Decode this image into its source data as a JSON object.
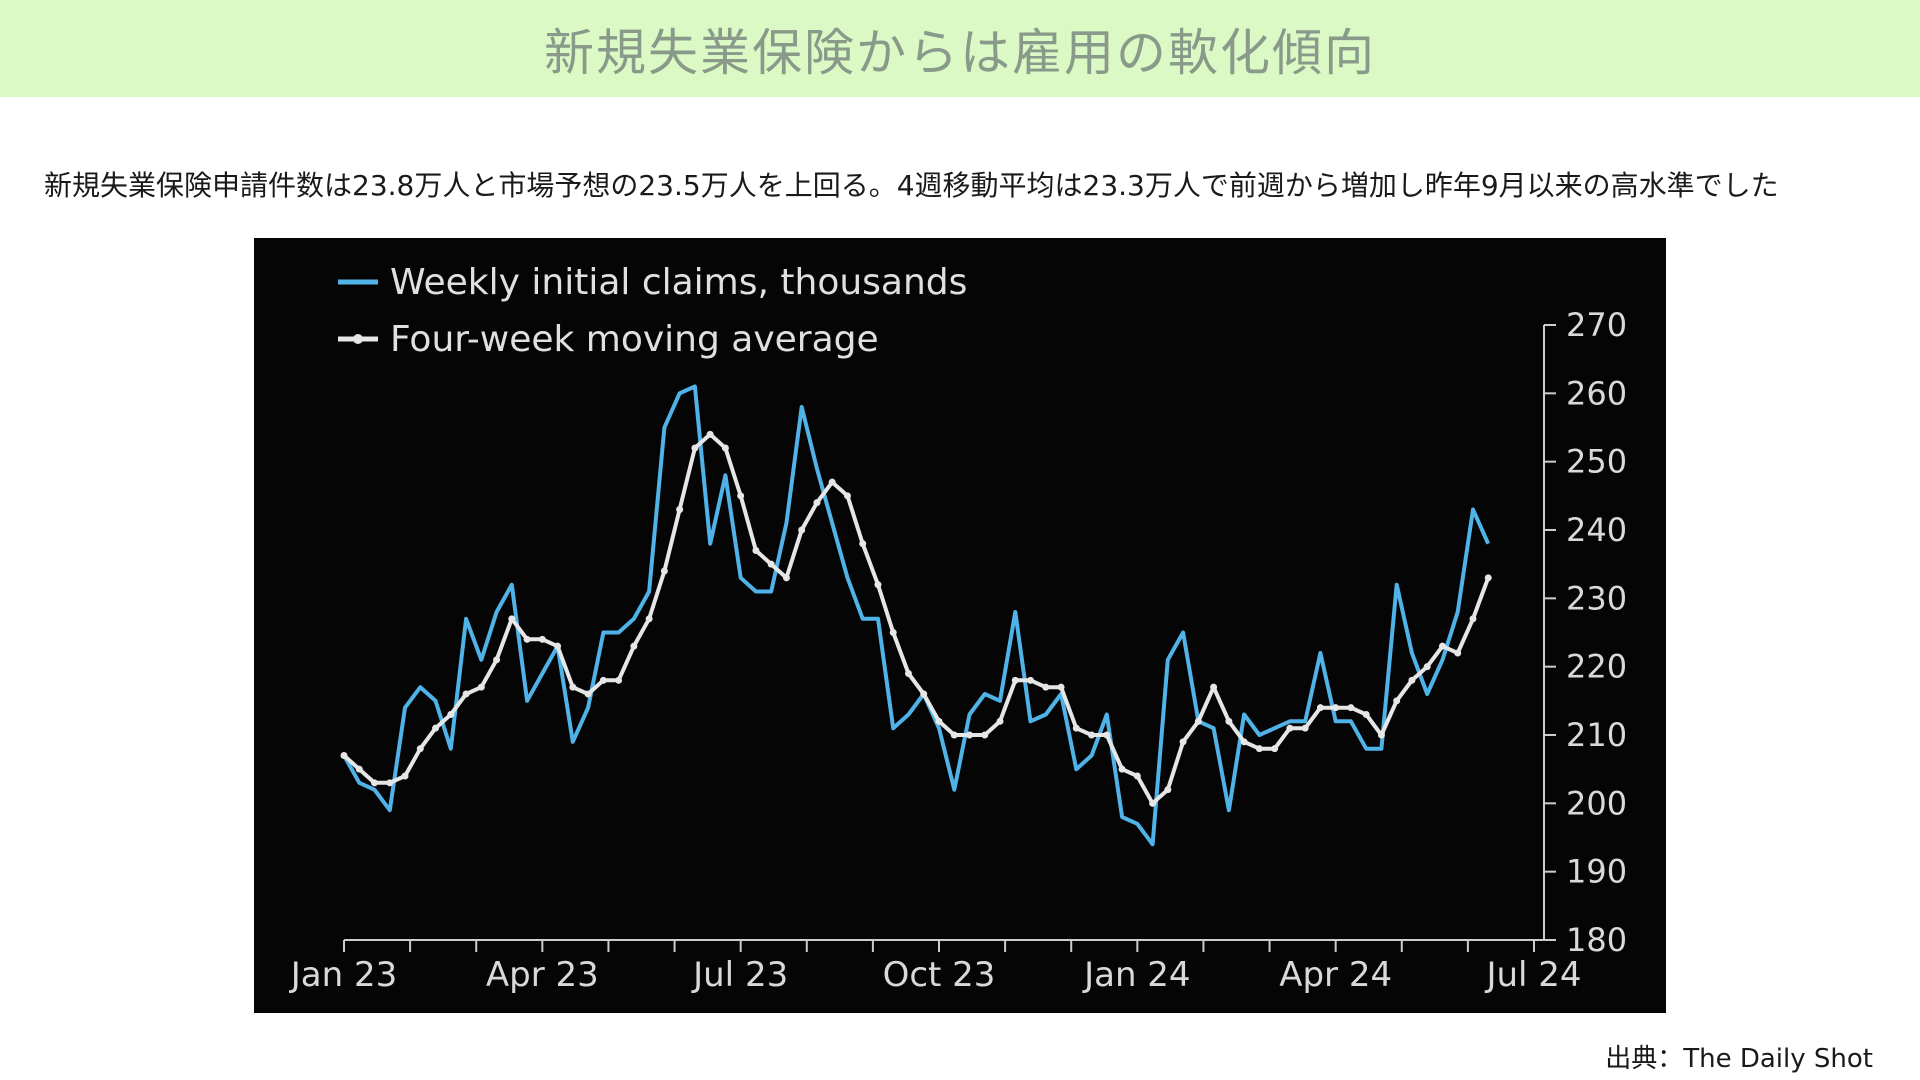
{
  "header": {
    "title": "新規失業保険からは雇用の軟化傾向"
  },
  "summary": "新規失業保険申請件数は23.8万人と市場予想の23.5万人を上回る。4週移動平均は23.3万人で前週から増加し昨年9月以来の高水準でした",
  "source": "出典：The Daily Shot",
  "colors": {
    "header_bg": "#dbf9c4",
    "weekly": "#4fb3e8",
    "average": "#e6e6e6",
    "chart_bg": "#050505",
    "axis": "#cccccc"
  },
  "chart_data": {
    "type": "line",
    "title": "",
    "xlabel": "",
    "ylabel": "",
    "ylim": [
      180,
      270
    ],
    "yticks": [
      180,
      190,
      200,
      210,
      220,
      230,
      240,
      250,
      260,
      270
    ],
    "x_tick_labels": [
      "Jan 23",
      "Apr 23",
      "Jul 23",
      "Oct 23",
      "Jan 24",
      "Apr 24",
      "Jul 24"
    ],
    "legend_position": "top-left",
    "grid": false,
    "x_start": "2023-01-07",
    "x_step": "1 week",
    "series": [
      {
        "name": "Weekly initial claims, thousands",
        "values": [
          207,
          203,
          202,
          199,
          214,
          217,
          215,
          208,
          227,
          221,
          228,
          232,
          215,
          219,
          223,
          209,
          214,
          225,
          225,
          227,
          231,
          255,
          260,
          261,
          238,
          248,
          233,
          231,
          231,
          241,
          258,
          249,
          241,
          233,
          227,
          227,
          211,
          213,
          216,
          211,
          202,
          213,
          216,
          215,
          228,
          212,
          213,
          216,
          205,
          207,
          213,
          198,
          197,
          194,
          221,
          225,
          212,
          211,
          199,
          213,
          210,
          211,
          212,
          212,
          222,
          212,
          212,
          208,
          208,
          232,
          222,
          216,
          221,
          228,
          243,
          238
        ]
      },
      {
        "name": "Four-week moving average",
        "values": [
          207,
          205,
          203,
          203,
          204,
          208,
          211,
          213,
          216,
          217,
          221,
          227,
          224,
          224,
          223,
          217,
          216,
          218,
          218,
          223,
          227,
          234,
          243,
          252,
          254,
          252,
          245,
          237,
          235,
          233,
          240,
          244,
          247,
          245,
          238,
          232,
          225,
          219,
          216,
          212,
          210,
          210,
          210,
          212,
          218,
          218,
          217,
          217,
          211,
          210,
          210,
          205,
          204,
          200,
          202,
          209,
          212,
          217,
          212,
          209,
          208,
          208,
          211,
          211,
          214,
          214,
          214,
          213,
          210,
          215,
          218,
          220,
          223,
          222,
          227,
          233
        ]
      }
    ]
  }
}
